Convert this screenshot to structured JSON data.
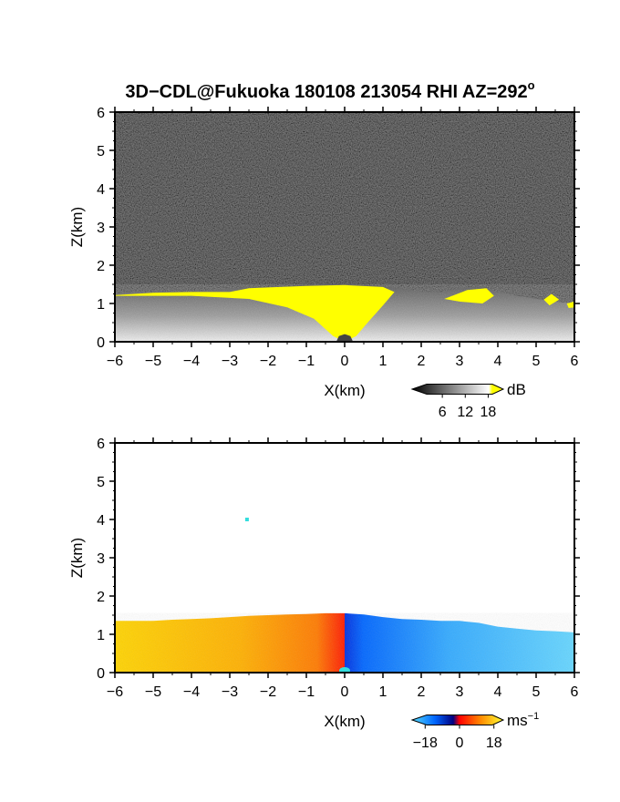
{
  "title": {
    "text": "3D−CDL@Fukuoka 180108 213054 RHI AZ=292",
    "degree": "o"
  },
  "colors": {
    "background": "#ffffff",
    "axes": "#000000",
    "dark_background_noise": "#1e1e1e",
    "saturated_snr": "#ffff00",
    "velocity_toward": "#ff9900",
    "velocity_away": "#33bbff",
    "velocity_zero": "#ff0000"
  },
  "chart_data": [
    {
      "type": "heatmap",
      "panel": "snr",
      "xlabel": "X(km)",
      "ylabel": "Z(km)",
      "xlim": [
        -6,
        6
      ],
      "ylim": [
        0,
        6
      ],
      "grid": false,
      "x_ticks": [
        "−6",
        "−5",
        "−4",
        "−3",
        "−2",
        "−1",
        "0",
        "1",
        "2",
        "3",
        "4",
        "5",
        "6"
      ],
      "y_ticks": [
        "0",
        "1",
        "2",
        "3",
        "4",
        "5",
        "6"
      ],
      "colormap": "grayscale-to-yellow",
      "colorbar": {
        "ticks": [
          "6",
          "12",
          "18"
        ],
        "range": [
          0,
          21
        ],
        "unit": "dB",
        "colors": [
          "#000000",
          "#ffffff",
          "#ffff00"
        ]
      },
      "fields": {
        "boundary_layer_top_km": [
          [
            -6.0,
            1.25
          ],
          [
            -5.5,
            1.3
          ],
          [
            -5.0,
            1.3
          ],
          [
            -4.5,
            1.32
          ],
          [
            -4.0,
            1.3
          ],
          [
            -3.5,
            1.35
          ],
          [
            -3.0,
            1.4
          ],
          [
            -2.5,
            1.42
          ],
          [
            -2.0,
            1.43
          ],
          [
            -1.5,
            1.45
          ],
          [
            -1.0,
            1.48
          ],
          [
            -0.5,
            1.5
          ],
          [
            0.0,
            1.5
          ],
          [
            0.5,
            1.48
          ],
          [
            1.0,
            1.45
          ],
          [
            1.5,
            1.4
          ],
          [
            2.0,
            1.3
          ],
          [
            2.5,
            1.3
          ],
          [
            3.0,
            1.4
          ],
          [
            3.5,
            1.45
          ],
          [
            4.0,
            1.3
          ],
          [
            4.5,
            1.2
          ],
          [
            5.0,
            1.12
          ],
          [
            5.5,
            1.05
          ],
          [
            6.0,
            1.0
          ]
        ],
        "saturated_region_km": [
          [
            -6.0,
            1.22
          ],
          [
            -5.0,
            1.28
          ],
          [
            -4.0,
            1.3
          ],
          [
            -3.0,
            1.3
          ],
          [
            -2.5,
            1.4
          ],
          [
            -2.0,
            1.42
          ],
          [
            -1.0,
            1.46
          ],
          [
            0.0,
            1.48
          ],
          [
            1.0,
            1.43
          ],
          [
            1.3,
            1.3
          ],
          [
            1.0,
            0.95
          ],
          [
            0.6,
            0.5
          ],
          [
            0.3,
            0.15
          ],
          [
            0.0,
            0.0
          ],
          [
            -0.3,
            0.15
          ],
          [
            -0.8,
            0.6
          ],
          [
            -1.5,
            0.9
          ],
          [
            -2.5,
            1.12
          ],
          [
            -4.0,
            1.2
          ],
          [
            -6.0,
            1.2
          ]
        ],
        "saturated_patches_km": [
          [
            [
              2.6,
              1.12
            ],
            [
              3.2,
              1.35
            ],
            [
              3.7,
              1.4
            ],
            [
              3.9,
              1.2
            ],
            [
              3.6,
              1.0
            ],
            [
              3.0,
              1.05
            ]
          ],
          [
            [
              5.2,
              1.1
            ],
            [
              5.4,
              1.25
            ],
            [
              5.6,
              1.1
            ],
            [
              5.35,
              0.95
            ]
          ],
          [
            [
              5.8,
              1.0
            ],
            [
              6.0,
              1.05
            ],
            [
              6.0,
              0.9
            ],
            [
              5.85,
              0.88
            ]
          ]
        ]
      }
    },
    {
      "type": "heatmap",
      "panel": "doppler_velocity",
      "xlabel": "X(km)",
      "ylabel": "Z(km)",
      "xlim": [
        -6,
        6
      ],
      "ylim": [
        0,
        6
      ],
      "grid": false,
      "x_ticks": [
        "−6",
        "−5",
        "−4",
        "−3",
        "−2",
        "−1",
        "0",
        "1",
        "2",
        "3",
        "4",
        "5",
        "6"
      ],
      "y_ticks": [
        "0",
        "1",
        "2",
        "3",
        "4",
        "5",
        "6"
      ],
      "colormap": "cyan-blue-red-orange-yellow",
      "colorbar": {
        "ticks": [
          "−18",
          "0",
          "18"
        ],
        "range": [
          -21,
          21
        ],
        "unit": "ms",
        "unit_superscript": "−1",
        "colors": [
          "#55ddff",
          "#0055ff",
          "#000099",
          "#ff0000",
          "#ff8800",
          "#ffff33"
        ]
      },
      "fields": {
        "echo_top_km": [
          [
            -6.0,
            1.35
          ],
          [
            -5.5,
            1.35
          ],
          [
            -5.0,
            1.35
          ],
          [
            -4.5,
            1.38
          ],
          [
            -4.0,
            1.4
          ],
          [
            -3.5,
            1.42
          ],
          [
            -3.0,
            1.45
          ],
          [
            -2.5,
            1.48
          ],
          [
            -2.0,
            1.5
          ],
          [
            -1.5,
            1.52
          ],
          [
            -1.0,
            1.53
          ],
          [
            -0.5,
            1.55
          ],
          [
            0.0,
            1.55
          ],
          [
            0.5,
            1.52
          ],
          [
            1.0,
            1.45
          ],
          [
            1.5,
            1.4
          ],
          [
            2.0,
            1.38
          ],
          [
            2.5,
            1.35
          ],
          [
            3.0,
            1.35
          ],
          [
            3.5,
            1.3
          ],
          [
            4.0,
            1.2
          ],
          [
            4.5,
            1.15
          ],
          [
            5.0,
            1.1
          ],
          [
            5.5,
            1.08
          ],
          [
            6.0,
            1.05
          ]
        ],
        "isolated_echo_km": [
          -2.55,
          4.0
        ]
      }
    }
  ]
}
